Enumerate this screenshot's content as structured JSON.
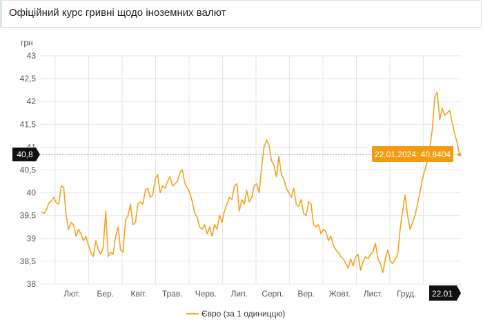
{
  "header": {
    "title": "Офіційний курс гривні щодо іноземних валют"
  },
  "colors": {
    "series": "#f5a21d",
    "grid": "#e6e6e6",
    "flag": "#111111",
    "tooltip": "#f39c12"
  },
  "chart_data": {
    "type": "line",
    "title": "Офіційний курс гривні щодо іноземних валют",
    "ylabel": "грн",
    "ylim": [
      38,
      43
    ],
    "y_ticks": [
      "38",
      "38,5",
      "39",
      "39,5",
      "40",
      "40,5",
      "41",
      "41,5",
      "42",
      "42,5",
      "43"
    ],
    "x_ticks": [
      "Лют.",
      "Бер.",
      "Квіт.",
      "Трав.",
      "Черв.",
      "Лип.",
      "Серп.",
      "Вер.",
      "Жовт.",
      "Лист.",
      "Груд."
    ],
    "grid": true,
    "legend_position": "bottom",
    "series": [
      {
        "name": "Євро (за 1 одиниццю)",
        "values": [
          39.58,
          39.55,
          39.62,
          39.78,
          39.82,
          39.9,
          39.78,
          39.75,
          40.15,
          40.12,
          39.5,
          39.2,
          39.35,
          39.3,
          39.05,
          39.2,
          39.1,
          38.95,
          39.05,
          38.85,
          38.7,
          38.6,
          38.95,
          38.75,
          38.65,
          38.8,
          39.6,
          38.6,
          38.7,
          38.65,
          39.05,
          39.25,
          38.75,
          38.7,
          39.4,
          39.5,
          39.75,
          39.3,
          39.35,
          39.75,
          39.8,
          39.75,
          40.05,
          40.1,
          39.9,
          39.95,
          40.3,
          40.4,
          40.0,
          40.15,
          40.1,
          40.25,
          40.35,
          40.15,
          40.2,
          40.25,
          40.45,
          40.5,
          40.2,
          40.1,
          40.0,
          39.8,
          39.55,
          39.45,
          39.25,
          39.2,
          39.3,
          39.1,
          39.25,
          39.05,
          39.3,
          39.2,
          39.5,
          39.35,
          39.6,
          39.75,
          39.9,
          39.85,
          40.15,
          40.2,
          39.6,
          39.85,
          39.75,
          40.05,
          39.8,
          39.9,
          40.15,
          40.2,
          40.0,
          40.55,
          41.0,
          41.15,
          41.05,
          40.7,
          40.6,
          40.35,
          40.8,
          40.4,
          40.3,
          40.1,
          40.0,
          39.9,
          40.1,
          39.75,
          39.7,
          39.85,
          39.55,
          39.5,
          39.8,
          39.75,
          39.3,
          39.25,
          39.3,
          39.1,
          39.2,
          39.15,
          38.95,
          39.05,
          38.85,
          38.75,
          38.7,
          38.6,
          38.55,
          38.45,
          38.35,
          38.55,
          38.4,
          38.6,
          38.65,
          38.3,
          38.5,
          38.6,
          38.55,
          38.65,
          38.7,
          38.9,
          38.55,
          38.45,
          38.25,
          38.55,
          38.75,
          38.5,
          38.45,
          38.55,
          38.65,
          39.2,
          39.6,
          39.95,
          39.5,
          39.2,
          39.35,
          39.5,
          39.75,
          40.0,
          40.3,
          40.5,
          40.7,
          41.0,
          41.4,
          42.1,
          42.2,
          41.6,
          41.85,
          41.7,
          41.75,
          41.8,
          41.55,
          41.3,
          41.1,
          40.84
        ]
      }
    ],
    "crosshair": {
      "label": "40,8",
      "value": 40.84
    },
    "x_flag": "22.01",
    "tooltip": "22.01.2024: 40,8404"
  }
}
